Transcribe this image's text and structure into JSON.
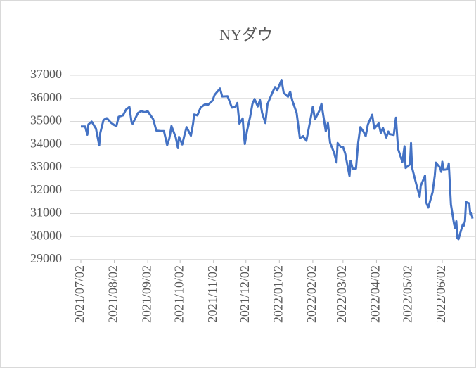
{
  "chart_data": {
    "type": "line",
    "title": "NYダウ",
    "x": [
      "2021/07/02",
      "2021/07/06",
      "2021/07/08",
      "2021/07/09",
      "2021/07/12",
      "2021/07/16",
      "2021/07/19",
      "2021/07/20",
      "2021/07/23",
      "2021/07/26",
      "2021/07/30",
      "2021/08/02",
      "2021/08/04",
      "2021/08/06",
      "2021/08/10",
      "2021/08/13",
      "2021/08/16",
      "2021/08/18",
      "2021/08/19",
      "2021/08/24",
      "2021/08/27",
      "2021/08/30",
      "2021/09/02",
      "2021/09/07",
      "2021/09/10",
      "2021/09/14",
      "2021/09/17",
      "2021/09/20",
      "2021/09/22",
      "2021/09/24",
      "2021/09/28",
      "2021/09/30",
      "2021/10/01",
      "2021/10/04",
      "2021/10/06",
      "2021/10/08",
      "2021/10/12",
      "2021/10/14",
      "2021/10/15",
      "2021/10/18",
      "2021/10/21",
      "2021/10/25",
      "2021/10/28",
      "2021/11/01",
      "2021/11/03",
      "2021/11/08",
      "2021/11/10",
      "2021/11/15",
      "2021/11/19",
      "2021/11/22",
      "2021/11/24",
      "2021/11/26",
      "2021/11/29",
      "2021/11/30",
      "2021/12/01",
      "2021/12/03",
      "2021/12/06",
      "2021/12/08",
      "2021/12/10",
      "2021/12/13",
      "2021/12/15",
      "2021/12/17",
      "2021/12/20",
      "2021/12/22",
      "2021/12/27",
      "2021/12/29",
      "2021/12/31",
      "2022/01/04",
      "2022/01/06",
      "2022/01/10",
      "2022/01/12",
      "2022/01/14",
      "2022/01/18",
      "2022/01/21",
      "2022/01/24",
      "2022/01/27",
      "2022/01/31",
      "2022/02/02",
      "2022/02/04",
      "2022/02/08",
      "2022/02/10",
      "2022/02/14",
      "2022/02/16",
      "2022/02/18",
      "2022/02/22",
      "2022/02/24",
      "2022/02/25",
      "2022/02/28",
      "2022/03/02",
      "2022/03/04",
      "2022/03/08",
      "2022/03/09",
      "2022/03/11",
      "2022/03/14",
      "2022/03/16",
      "2022/03/18",
      "2022/03/21",
      "2022/03/23",
      "2022/03/25",
      "2022/03/29",
      "2022/03/31",
      "2022/04/04",
      "2022/04/06",
      "2022/04/08",
      "2022/04/11",
      "2022/04/13",
      "2022/04/14",
      "2022/04/18",
      "2022/04/20",
      "2022/04/22",
      "2022/04/26",
      "2022/04/28",
      "2022/04/29",
      "2022/05/03",
      "2022/05/04",
      "2022/05/05",
      "2022/05/09",
      "2022/05/12",
      "2022/05/13",
      "2022/05/17",
      "2022/05/18",
      "2022/05/20",
      "2022/05/24",
      "2022/05/26",
      "2022/05/27",
      "2022/05/31",
      "2022/06/01",
      "2022/06/02",
      "2022/06/03",
      "2022/06/07",
      "2022/06/08",
      "2022/06/10",
      "2022/06/13",
      "2022/06/14",
      "2022/06/15",
      "2022/06/16",
      "2022/06/17",
      "2022/06/21",
      "2022/06/22",
      "2022/06/23",
      "2022/06/24",
      "2022/06/27",
      "2022/06/28",
      "2022/06/29",
      "2022/06/30"
    ],
    "series": [
      {
        "name": "NYダウ",
        "color": "#4472c4",
        "values": [
          34780,
          34780,
          34420,
          34870,
          34990,
          34690,
          33960,
          34500,
          35060,
          35140,
          34940,
          34840,
          34800,
          35200,
          35260,
          35520,
          35630,
          34960,
          34900,
          35370,
          35450,
          35400,
          35440,
          35100,
          34600,
          34580,
          34580,
          33970,
          34260,
          34800,
          34300,
          33840,
          34330,
          34000,
          34400,
          34750,
          34380,
          34900,
          35300,
          35260,
          35600,
          35740,
          35730,
          35900,
          36150,
          36430,
          36080,
          36090,
          35600,
          35620,
          35800,
          34900,
          35130,
          34480,
          34020,
          34580,
          35220,
          35750,
          35970,
          35650,
          35930,
          35370,
          34930,
          35750,
          36300,
          36490,
          36340,
          36800,
          36240,
          36070,
          36290,
          35900,
          35370,
          34270,
          34360,
          34160,
          35130,
          35630,
          35090,
          35460,
          35770,
          34570,
          34930,
          34080,
          33600,
          33220,
          34060,
          33890,
          33890,
          33610,
          32630,
          33290,
          32940,
          32950,
          34060,
          34750,
          34550,
          34360,
          34860,
          35290,
          34680,
          34920,
          34500,
          34720,
          34300,
          34560,
          34450,
          34410,
          35160,
          33810,
          33240,
          33920,
          32980,
          33130,
          34060,
          32990,
          32250,
          31730,
          32200,
          32650,
          31490,
          31260,
          31930,
          32640,
          33210,
          32990,
          32810,
          33250,
          32900,
          32920,
          33180,
          31390,
          30520,
          30360,
          30670,
          29930,
          29890,
          30530,
          30480,
          30680,
          31500,
          31440,
          30950,
          31030,
          30780
        ]
      }
    ],
    "xlim": [
      "2021/07/02",
      "2022/06/30"
    ],
    "xticks": [
      "2021/07/02",
      "2021/08/02",
      "2021/09/02",
      "2021/10/02",
      "2021/11/02",
      "2021/12/02",
      "2022/01/02",
      "2022/02/02",
      "2022/03/02",
      "2022/04/02",
      "2022/05/02",
      "2022/06/02"
    ],
    "ylim": [
      29000,
      37000
    ],
    "yticks": [
      29000,
      30000,
      31000,
      32000,
      33000,
      34000,
      35000,
      36000,
      37000
    ],
    "grid": true
  }
}
